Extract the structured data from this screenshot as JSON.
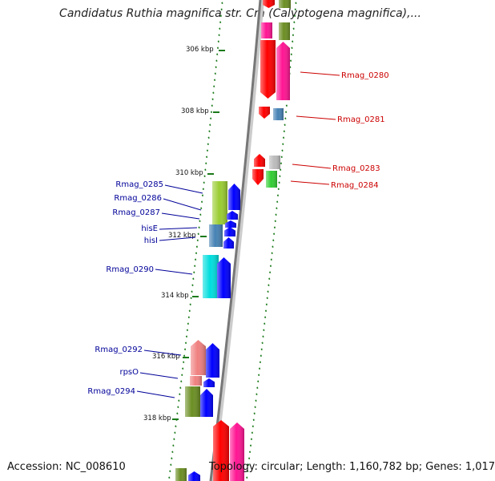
{
  "title": "Candidatus Ruthia magnifica str. Cm (Calyptogena magnifica),...",
  "accession": "Accession: NC_008610",
  "topology": "Topology: circular; Length: 1,160,782 bp; Genes: 1,017",
  "colors": {
    "label_left": "#000099",
    "label_right": "#cc0000",
    "tick": "#1a7a1a",
    "backbone": "#888888",
    "red": "#ff0000",
    "pink": "#ff1493",
    "olive": "#6b8e23",
    "yellowgreen": "#9acd32",
    "steelblue": "#4682b4",
    "gray": "#bbbbbb",
    "green": "#32cd32",
    "blue": "#0000ff",
    "cyan": "#00dddd",
    "salmon": "#f08080"
  },
  "kbp_labels": [
    "306 kbp",
    "308 kbp",
    "310 kbp",
    "312 kbp",
    "314 kbp",
    "316 kbp",
    "318 kbp"
  ],
  "gene_labels_right": [
    "Rmag_0280",
    "Rmag_0281",
    "Rmag_0283",
    "Rmag_0284"
  ],
  "gene_labels_left": [
    "Rmag_0285",
    "Rmag_0286",
    "Rmag_0287",
    "hisE",
    "hisI",
    "Rmag_0290",
    "Rmag_0292",
    "rpsO",
    "Rmag_0294"
  ]
}
